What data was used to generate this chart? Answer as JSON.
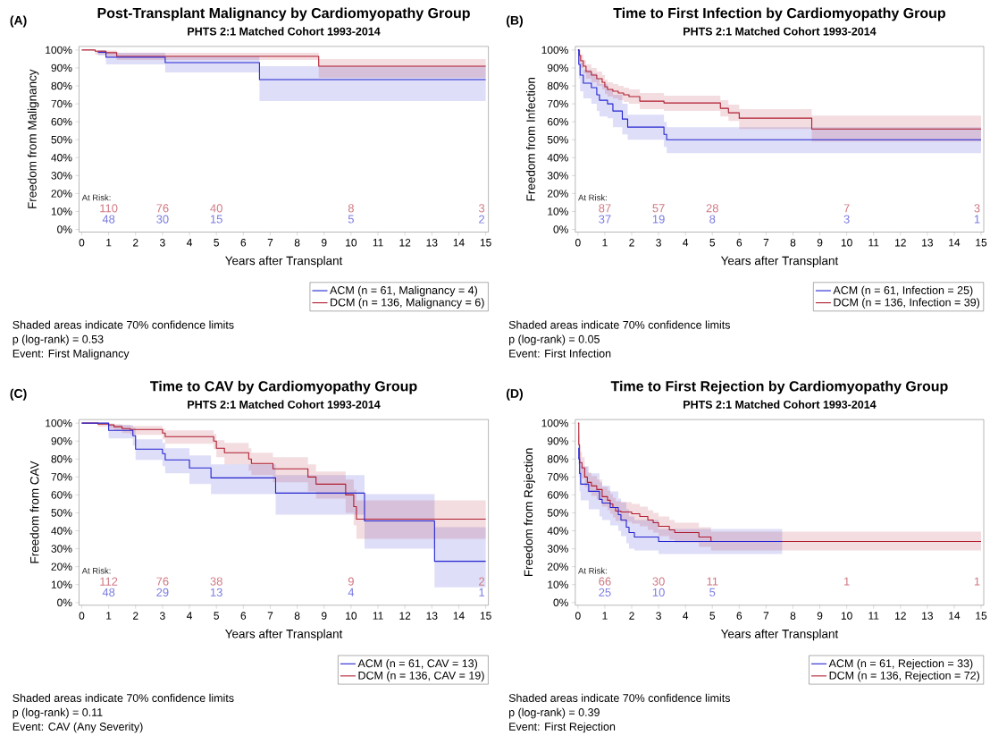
{
  "chart_data": [
    {
      "type": "step",
      "title": "Post-Transplant Malignancy by Cardiomyopathy Group",
      "subtitle": "PHTS 2:1 Matched Cohort 1993-2014",
      "xlabel": "Years after Transplant",
      "ylabel": "Freedom from Malignancy",
      "xlim": [
        -0.1,
        15.1
      ],
      "ylim": [
        -1.5,
        102
      ],
      "xticks": [
        0,
        1,
        2,
        3,
        4,
        5,
        6,
        7,
        8,
        9,
        10,
        11,
        12,
        13,
        14,
        15
      ],
      "yticks": [
        {
          "value": 0,
          "label": "0%"
        },
        {
          "value": 10,
          "label": "10%"
        },
        {
          "value": 20,
          "label": "20%"
        },
        {
          "value": 30,
          "label": "30%"
        },
        {
          "value": 40,
          "label": "40%"
        },
        {
          "value": 50,
          "label": "50%"
        },
        {
          "value": 60,
          "label": "60%"
        },
        {
          "value": 70,
          "label": "70%"
        },
        {
          "value": 80,
          "label": "80%"
        },
        {
          "value": 90,
          "label": "90%"
        },
        {
          "value": 100,
          "label": "100%"
        }
      ],
      "legend": "bottom right",
      "series": [
        {
          "name": "ACM (n = 61, Malignancy = 4)",
          "color": "#2323d0",
          "x": [
            0,
            0.6,
            0.9,
            3.1,
            6.6,
            15
          ],
          "values": [
            null,
            98.7,
            96,
            93,
            83.5,
            83.5
          ],
          "lower": [
            100,
            97,
            92,
            87.5,
            71.5,
            71.5
          ],
          "upper": [
            100,
            100,
            98.5,
            96.5,
            91,
            91
          ]
        },
        {
          "name": "DCM (n = 136, Malignancy = 6)",
          "color": "#b01c2e",
          "x": [
            0,
            0.5,
            0.9,
            1.3,
            8.8,
            15
          ],
          "values": [
            100,
            99.3,
            98.5,
            96.5,
            91,
            91
          ],
          "lower": [
            100,
            97.5,
            96,
            94.5,
            84.5,
            84.5
          ],
          "upper": [
            100,
            100,
            99.7,
            98.5,
            95,
            95
          ]
        }
      ],
      "annotations": [
        "(A)",
        "Shaded areas indicate 70% confidence limits",
        "p (log-rank) = 0.53",
        "Event: First Malignancy",
        "At Risk:",
        "110",
        "76",
        "40",
        "8",
        "3",
        "48",
        "30",
        "15",
        "5",
        "2"
      ]
    },
    {
      "type": "step",
      "title": "Time to First Infection by Cardiomyopathy Group",
      "subtitle": "PHTS 2:1 Matched Cohort 1993-2014",
      "xlabel": "Years after Transplant",
      "ylabel": "Freedom from Infection",
      "xlim": [
        -0.1,
        15.1
      ],
      "ylim": [
        -1.5,
        102
      ],
      "xticks": [
        0,
        1,
        2,
        3,
        4,
        5,
        6,
        7,
        8,
        9,
        10,
        11,
        12,
        13,
        14,
        15
      ],
      "yticks": [
        {
          "value": 0,
          "label": "0%"
        },
        {
          "value": 10,
          "label": "10%"
        },
        {
          "value": 20,
          "label": "20%"
        },
        {
          "value": 30,
          "label": "30%"
        },
        {
          "value": 40,
          "label": "40%"
        },
        {
          "value": 50,
          "label": "50%"
        },
        {
          "value": 60,
          "label": "60%"
        },
        {
          "value": 70,
          "label": "70%"
        },
        {
          "value": 80,
          "label": "80%"
        },
        {
          "value": 90,
          "label": "90%"
        },
        {
          "value": 100,
          "label": "100%"
        }
      ],
      "legend": "bottom right",
      "series": [
        {
          "name": "ACM (n = 61, Infection = 25)",
          "color": "#2323d0",
          "x": [
            0,
            0.03,
            0.08,
            0.2,
            0.5,
            0.7,
            0.8,
            1.1,
            1.3,
            1.65,
            1.85,
            3.2,
            3.3,
            15
          ],
          "values": [
            100,
            92,
            86,
            81.5,
            79,
            75,
            72,
            70,
            66,
            61.5,
            57,
            53,
            50,
            50
          ],
          "lower": [
            100,
            84,
            77,
            73,
            70,
            66,
            63,
            62,
            57,
            53,
            50,
            46,
            42.5,
            42.5
          ],
          "upper": [
            100,
            98,
            93,
            89,
            87,
            84,
            81,
            78,
            75,
            70,
            64,
            60,
            57,
            57
          ]
        },
        {
          "name": "DCM (n = 136, Infection = 39)",
          "color": "#b01c2e",
          "x": [
            0,
            0.05,
            0.1,
            0.2,
            0.3,
            0.5,
            0.7,
            0.9,
            1.0,
            1.1,
            1.3,
            1.5,
            1.7,
            1.9,
            2.3,
            3.2,
            5.3,
            5.6,
            6.0,
            8.7,
            15
          ],
          "values": [
            100,
            97,
            94,
            91,
            88,
            86,
            84,
            82,
            79.5,
            78,
            77,
            76,
            75,
            74,
            71.5,
            70.5,
            67.5,
            65,
            62,
            56,
            56
          ],
          "lower": [
            100,
            93,
            90,
            87,
            84,
            82,
            80,
            78,
            75.5,
            74,
            73,
            72,
            71,
            70,
            67,
            66,
            63,
            60.5,
            56,
            49,
            49
          ],
          "upper": [
            100,
            100,
            97.5,
            94.5,
            92,
            90,
            88,
            86,
            83.5,
            82,
            81,
            80,
            79,
            78,
            76,
            74.5,
            72,
            69.5,
            67,
            63.5,
            63.5
          ]
        }
      ],
      "annotations": [
        "(B)",
        "Shaded areas indicate 70% confidence limits",
        "p (log-rank) = 0.05",
        "Event: First Infection",
        "At Risk:",
        "87",
        "57",
        "28",
        "7",
        "3",
        "37",
        "19",
        "8",
        "3",
        "1"
      ]
    },
    {
      "type": "step",
      "title": "Time to CAV by Cardiomyopathy Group",
      "subtitle": "PHTS 2:1 Matched Cohort 1993-2014",
      "xlabel": "Years after Transplant",
      "ylabel": "Freedom from CAV",
      "xlim": [
        -0.1,
        15.1
      ],
      "ylim": [
        -1.5,
        102
      ],
      "xticks": [
        0,
        1,
        2,
        3,
        4,
        5,
        6,
        7,
        8,
        9,
        10,
        11,
        12,
        13,
        14,
        15
      ],
      "yticks": [
        {
          "value": 0,
          "label": "0%"
        },
        {
          "value": 10,
          "label": "10%"
        },
        {
          "value": 20,
          "label": "20%"
        },
        {
          "value": 30,
          "label": "30%"
        },
        {
          "value": 40,
          "label": "40%"
        },
        {
          "value": 50,
          "label": "50%"
        },
        {
          "value": 60,
          "label": "60%"
        },
        {
          "value": 70,
          "label": "70%"
        },
        {
          "value": 80,
          "label": "80%"
        },
        {
          "value": 90,
          "label": "90%"
        },
        {
          "value": 100,
          "label": "100%"
        }
      ],
      "legend": "bottom right",
      "series": [
        {
          "name": "ACM (n = 61, CAV = 13)",
          "color": "#2323d0",
          "x": [
            0,
            1.0,
            1.9,
            2.0,
            3.0,
            3.1,
            4.0,
            4.8,
            7.2,
            10.5,
            13.1,
            15
          ],
          "values": [
            100,
            96,
            93,
            85.5,
            83,
            79.5,
            75,
            69.5,
            61,
            45.5,
            23,
            23
          ],
          "lower": [
            100,
            91.5,
            87.5,
            79.5,
            76,
            72,
            66,
            60.5,
            49,
            30,
            8.5,
            8.5
          ],
          "upper": [
            100,
            99,
            97.5,
            91,
            89,
            86,
            82,
            77,
            71,
            60.5,
            42,
            42
          ]
        },
        {
          "name": "DCM (n = 136, CAV = 19)",
          "color": "#b01c2e",
          "x": [
            0,
            0.6,
            1.0,
            1.2,
            1.5,
            1.8,
            3.0,
            3.1,
            4.9,
            5.0,
            5.3,
            6.2,
            6.3,
            7.1,
            8.4,
            8.7,
            9.8,
            10.1,
            10.2,
            15
          ],
          "values": [
            100,
            99.5,
            99,
            98,
            97,
            96.5,
            94.5,
            92.5,
            90,
            86,
            83.5,
            80,
            77.5,
            74.5,
            70,
            66,
            60,
            53.5,
            46.5,
            46.5
          ],
          "lower": [
            100,
            98,
            97,
            96,
            94.5,
            93.5,
            91,
            88.5,
            85.5,
            81,
            77,
            73.5,
            71,
            67,
            62,
            58,
            50,
            43,
            35.5,
            35.5
          ],
          "upper": [
            100,
            100,
            99.8,
            99.5,
            99,
            98.5,
            97,
            96,
            94,
            90.5,
            89,
            86,
            83.5,
            81,
            77,
            73,
            68.5,
            63,
            57,
            57
          ]
        }
      ],
      "annotations": [
        "(C)",
        "Shaded areas indicate 70% confidence limits",
        "p (log-rank) = 0.11",
        "Event: CAV (Any Severity)",
        "At Risk:",
        "112",
        "76",
        "38",
        "9",
        "2",
        "48",
        "29",
        "13",
        "4",
        "1"
      ]
    },
    {
      "type": "step",
      "title": "Time to First Rejection by Cardiomyopathy Group",
      "subtitle": "PHTS 2:1 Matched Cohort 1993-2014",
      "xlabel": "Years after Transplant",
      "ylabel": "Freedom from Rejection",
      "xlim": [
        -0.1,
        15.1
      ],
      "ylim": [
        -1.5,
        102
      ],
      "xticks": [
        0,
        1,
        2,
        3,
        4,
        5,
        6,
        7,
        8,
        9,
        10,
        11,
        12,
        13,
        14,
        15
      ],
      "yticks": [
        {
          "value": 0,
          "label": "0%"
        },
        {
          "value": 10,
          "label": "10%"
        },
        {
          "value": 20,
          "label": "20%"
        },
        {
          "value": 30,
          "label": "30%"
        },
        {
          "value": 40,
          "label": "40%"
        },
        {
          "value": 50,
          "label": "50%"
        },
        {
          "value": 60,
          "label": "60%"
        },
        {
          "value": 70,
          "label": "70%"
        },
        {
          "value": 80,
          "label": "80%"
        },
        {
          "value": 90,
          "label": "90%"
        },
        {
          "value": 100,
          "label": "100%"
        }
      ],
      "legend": "bottom right",
      "series": [
        {
          "name": "ACM (n = 61, Rejection = 33)",
          "color": "#2323d0",
          "x": [
            0,
            0.01,
            0.03,
            0.06,
            0.1,
            0.4,
            0.8,
            0.9,
            1.2,
            1.5,
            1.6,
            1.8,
            1.9,
            2.1,
            3.0,
            7.6
          ],
          "values": [
            null,
            86,
            80,
            72,
            66,
            62,
            57.5,
            55.5,
            53,
            49,
            46,
            42,
            39,
            36.5,
            34,
            34
          ],
          "lower": [
            100,
            77,
            70,
            62,
            57,
            52,
            48,
            46,
            43,
            40,
            37,
            33,
            30,
            29,
            27,
            27
          ],
          "upper": [
            100,
            93,
            88,
            81,
            76,
            72,
            67,
            65,
            62,
            58,
            56,
            52,
            48,
            46,
            41,
            41
          ]
        },
        {
          "name": "DCM (n = 136, Rejection = 72)",
          "color": "#b01c2e",
          "x": [
            0,
            0.03,
            0.06,
            0.15,
            0.25,
            0.35,
            0.5,
            0.7,
            0.9,
            1.1,
            1.2,
            1.3,
            1.4,
            1.6,
            2.0,
            2.3,
            2.6,
            2.8,
            3.0,
            3.4,
            3.6,
            4.5,
            4.95,
            15
          ],
          "values": [
            100,
            88,
            78,
            75,
            70,
            67,
            65,
            63,
            59,
            57,
            55,
            53,
            51,
            50.5,
            49.5,
            48,
            46,
            44.5,
            42.5,
            40.5,
            39,
            36.5,
            34,
            34
          ],
          "lower": [
            100,
            82,
            72,
            69,
            64.5,
            61.5,
            59.5,
            57.5,
            53.5,
            51.5,
            49.5,
            47.5,
            45.5,
            45,
            44,
            42.5,
            40.5,
            39,
            37,
            35,
            33.5,
            31,
            29,
            29
          ],
          "upper": [
            100,
            94,
            84,
            81,
            75.5,
            72.5,
            70.5,
            68.5,
            64.5,
            62.5,
            60.5,
            58.5,
            56.5,
            56,
            55,
            53.5,
            51.5,
            50,
            48,
            46,
            44.5,
            42,
            39.5,
            39.5
          ]
        }
      ],
      "annotations": [
        "(D)",
        "Shaded areas indicate 70% confidence limits",
        "p (log-rank) = 0.39",
        "Event: First Rejection",
        "At Risk:",
        "66",
        "30",
        "11",
        "1",
        "1",
        "25",
        "10",
        "5"
      ]
    }
  ]
}
